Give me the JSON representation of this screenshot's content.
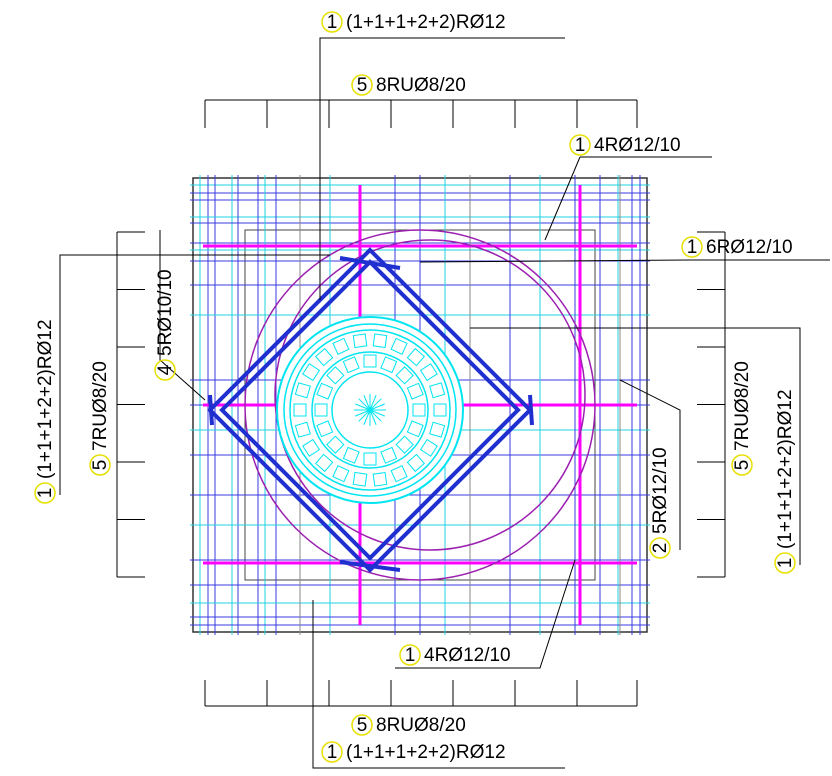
{
  "labels": [
    {
      "mark": "1",
      "text": "(1+1+1+2+2)RØ12"
    },
    {
      "mark": "5",
      "text": "8RUØ8/20"
    },
    {
      "mark": "1",
      "text": "4RØ12/10"
    },
    {
      "mark": "1",
      "text": "6RØ12/10"
    },
    {
      "mark": "1",
      "text": "(1+1+1+2+2)RØ12"
    },
    {
      "mark": "5",
      "text": "7RUØ8/20"
    },
    {
      "mark": "4",
      "text": "5RØ10/10"
    },
    {
      "mark": "5",
      "text": "7RUØ8/20"
    },
    {
      "mark": "1",
      "text": "(1+1+1+2+2)RØ12"
    },
    {
      "mark": "2",
      "text": "5RØ12/10"
    },
    {
      "mark": "1",
      "text": "4RØ12/10"
    },
    {
      "mark": "5",
      "text": "8RUØ8/20"
    },
    {
      "mark": "1",
      "text": "(1+1+1+2+2)RØ12"
    }
  ]
}
